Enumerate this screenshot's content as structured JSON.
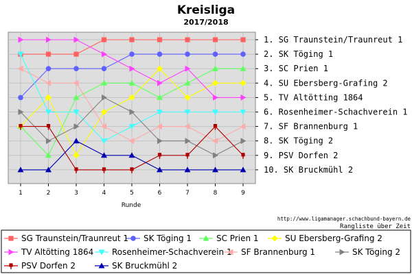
{
  "chart_data": {
    "type": "line",
    "title": "Kreisliga",
    "subtitle": "2017/2018",
    "xlabel": "Runde",
    "ylabel": "",
    "x": [
      1,
      2,
      3,
      4,
      5,
      6,
      7,
      8,
      9
    ],
    "ylim": [
      1,
      10
    ],
    "y_inverted": true,
    "grid": true,
    "legend_position": "bottom",
    "rank_labels": [
      "1. SG Traunstein/Traunreut 1",
      "2. SK Töging 1",
      "3. SC Prien 1",
      "4. SU Ebersberg-Grafing 2",
      "5. TV Altötting 1864",
      "6. Rosenheimer-Schachverein 1",
      "7. SF Brannenburg 1",
      "8. SK Töging 2",
      "9. PSV Dorfen 2",
      "10. SK Bruckmühl 2"
    ],
    "series": [
      {
        "name": "SG Traunstein/Traunreut 1",
        "color": "#ff6060",
        "marker": "square",
        "values": [
          2,
          2,
          2,
          1,
          1,
          1,
          1,
          1,
          1
        ]
      },
      {
        "name": "SK Töging 1",
        "color": "#6060ff",
        "marker": "circle",
        "values": [
          5,
          3,
          3,
          3,
          2,
          2,
          2,
          2,
          2
        ]
      },
      {
        "name": "SC Prien 1",
        "color": "#60ff60",
        "marker": "triangle-up",
        "values": [
          7,
          9,
          5,
          4,
          4,
          5,
          4,
          3,
          3
        ]
      },
      {
        "name": "SU Ebersberg-Grafing 2",
        "color": "#ffff00",
        "marker": "diamond",
        "values": [
          7,
          5,
          9,
          6,
          5,
          3,
          5,
          4,
          4
        ]
      },
      {
        "name": "TV Altötting 1864",
        "color": "#ff40ff",
        "marker": "triangle-right",
        "values": [
          1,
          1,
          1,
          2,
          3,
          4,
          3,
          5,
          5
        ]
      },
      {
        "name": "Rosenheimer-Schachverein 1",
        "color": "#40ffff",
        "marker": "triangle-down",
        "values": [
          2,
          6,
          6,
          8,
          7,
          6,
          6,
          6,
          6
        ]
      },
      {
        "name": "SF Brannenburg 1",
        "color": "#ffaaaa",
        "marker": "triangle-left",
        "values": [
          3,
          4,
          4,
          7,
          8,
          7,
          7,
          8,
          7
        ]
      },
      {
        "name": "SK Töging 2",
        "color": "#808080",
        "marker": "triangle-right",
        "values": [
          6,
          8,
          7,
          5,
          6,
          8,
          8,
          9,
          8
        ]
      },
      {
        "name": "PSV Dorfen 2",
        "color": "#b00000",
        "marker": "square-stem",
        "values": [
          7,
          7,
          10,
          10,
          10,
          9,
          9,
          7,
          9
        ]
      },
      {
        "name": "SK Bruckmühl 2",
        "color": "#0000b0",
        "marker": "triangle-up",
        "values": [
          10,
          10,
          8,
          9,
          9,
          10,
          10,
          10,
          10
        ]
      }
    ],
    "annotations": [
      "http://www.ligamanager.schachbund-bayern.de",
      "Rangliste über Zeit"
    ]
  }
}
